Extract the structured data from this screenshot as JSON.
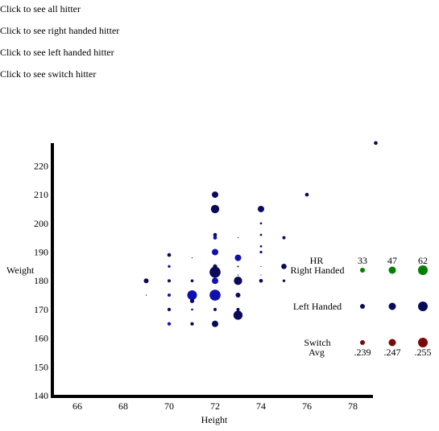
{
  "links": [
    "Click to see all hitter",
    "Click to see right handed hitter",
    "Click to see left handed hitter",
    "Click to see switch hitter"
  ],
  "colors": {
    "right": "#1010b0",
    "left": "#0a0a5a",
    "switch": "#7a0a0a",
    "legend_right": "#008000",
    "axis": "#000000"
  },
  "chart_data": {
    "type": "scatter",
    "title": "",
    "xlabel": "Height",
    "ylabel": "Weight",
    "xlim": [
      65,
      79
    ],
    "ylim": [
      140,
      227
    ],
    "xticks": [
      66,
      68,
      70,
      72,
      74,
      76,
      78
    ],
    "yticks": [
      140,
      150,
      160,
      170,
      180,
      190,
      200,
      210,
      220
    ],
    "size_encoding": "HR",
    "color_encoding": "Avg",
    "points": [
      {
        "x": 69,
        "y": 180,
        "hr": 42,
        "hand": "left"
      },
      {
        "x": 69,
        "y": 175,
        "hr": 28,
        "hand": "left"
      },
      {
        "x": 70,
        "y": 189,
        "hr": 38,
        "hand": "left"
      },
      {
        "x": 70,
        "y": 185,
        "hr": 34,
        "hand": "right"
      },
      {
        "x": 70,
        "y": 180,
        "hr": 36,
        "hand": "left"
      },
      {
        "x": 70,
        "y": 175,
        "hr": 36,
        "hand": "right"
      },
      {
        "x": 70,
        "y": 170,
        "hr": 37,
        "hand": "left"
      },
      {
        "x": 70,
        "y": 165,
        "hr": 37,
        "hand": "right"
      },
      {
        "x": 71,
        "y": 188,
        "hr": 28,
        "hand": "right"
      },
      {
        "x": 71,
        "y": 180,
        "hr": 35,
        "hand": "left"
      },
      {
        "x": 71,
        "y": 175,
        "hr": 60,
        "hand": "right"
      },
      {
        "x": 71,
        "y": 173,
        "hr": 40,
        "hand": "left"
      },
      {
        "x": 71,
        "y": 170,
        "hr": 32,
        "hand": "right"
      },
      {
        "x": 71,
        "y": 165,
        "hr": 37,
        "hand": "left"
      },
      {
        "x": 72,
        "y": 210,
        "hr": 48,
        "hand": "left"
      },
      {
        "x": 72,
        "y": 205,
        "hr": 55,
        "hand": "left"
      },
      {
        "x": 72,
        "y": 196,
        "hr": 38,
        "hand": "left"
      },
      {
        "x": 72,
        "y": 195,
        "hr": 38,
        "hand": "right"
      },
      {
        "x": 72,
        "y": 190,
        "hr": 48,
        "hand": "right"
      },
      {
        "x": 72,
        "y": 185,
        "hr": 40,
        "hand": "left"
      },
      {
        "x": 72,
        "y": 183,
        "hr": 65,
        "hand": "left"
      },
      {
        "x": 72,
        "y": 180,
        "hr": 48,
        "hand": "right"
      },
      {
        "x": 72,
        "y": 175,
        "hr": 65,
        "hand": "right"
      },
      {
        "x": 72,
        "y": 170,
        "hr": 36,
        "hand": "left"
      },
      {
        "x": 72,
        "y": 165,
        "hr": 48,
        "hand": "left"
      },
      {
        "x": 73,
        "y": 195,
        "hr": 26,
        "hand": "left"
      },
      {
        "x": 73,
        "y": 188,
        "hr": 48,
        "hand": "right"
      },
      {
        "x": 73,
        "y": 185,
        "hr": 30,
        "hand": "left"
      },
      {
        "x": 73,
        "y": 182,
        "hr": 28,
        "hand": "left"
      },
      {
        "x": 73,
        "y": 180,
        "hr": 55,
        "hand": "left"
      },
      {
        "x": 73,
        "y": 175,
        "hr": 42,
        "hand": "left"
      },
      {
        "x": 73,
        "y": 170,
        "hr": 36,
        "hand": "left"
      },
      {
        "x": 73,
        "y": 168,
        "hr": 58,
        "hand": "left"
      },
      {
        "x": 74,
        "y": 205,
        "hr": 48,
        "hand": "left"
      },
      {
        "x": 74,
        "y": 200,
        "hr": 32,
        "hand": "left"
      },
      {
        "x": 74,
        "y": 196,
        "hr": 32,
        "hand": "left"
      },
      {
        "x": 74,
        "y": 192,
        "hr": 32,
        "hand": "left"
      },
      {
        "x": 74,
        "y": 190,
        "hr": 34,
        "hand": "right"
      },
      {
        "x": 74,
        "y": 185,
        "hr": 26,
        "hand": "left"
      },
      {
        "x": 74,
        "y": 182,
        "hr": 26,
        "hand": "left"
      },
      {
        "x": 74,
        "y": 180,
        "hr": 38,
        "hand": "left"
      },
      {
        "x": 75,
        "y": 195,
        "hr": 36,
        "hand": "left"
      },
      {
        "x": 75,
        "y": 185,
        "hr": 44,
        "hand": "left"
      },
      {
        "x": 75,
        "y": 180,
        "hr": 34,
        "hand": "left"
      },
      {
        "x": 76,
        "y": 210,
        "hr": 38,
        "hand": "left"
      },
      {
        "x": 79,
        "y": 228,
        "hr": 38,
        "hand": "left"
      }
    ],
    "legend": {
      "hr_label": "HR",
      "hr_values": [
        "33",
        "47",
        "62"
      ],
      "rows": [
        "Right Handed",
        "Left Handed",
        "Switch"
      ],
      "avg_label": "Avg",
      "avg_values": [
        ".239",
        ".247",
        ".255"
      ]
    }
  }
}
